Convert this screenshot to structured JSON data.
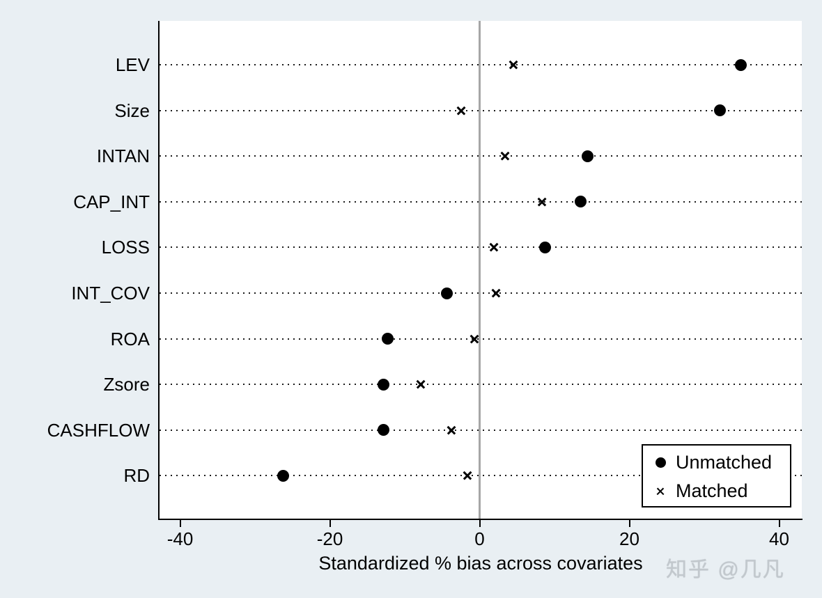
{
  "chart_data": {
    "type": "scatter",
    "title": "",
    "xlabel": "Standardized % bias across covariates",
    "ylabel": "",
    "categories": [
      "LEV",
      "Size",
      "INTAN",
      "CAP_INT",
      "LOSS",
      "INT_COV",
      "ROA",
      "Zsore",
      "CASHFLOW",
      "RD"
    ],
    "series": [
      {
        "name": "Unmatched",
        "marker": "circle",
        "values": [
          34.9,
          32.1,
          14.4,
          13.5,
          8.7,
          -4.4,
          -12.3,
          -12.8,
          -12.8,
          -26.2
        ]
      },
      {
        "name": "Matched",
        "marker": "x",
        "values": [
          4.5,
          -2.5,
          3.4,
          8.3,
          1.9,
          2.2,
          -0.7,
          -7.9,
          -3.8,
          -1.6
        ]
      }
    ],
    "xticks": [
      -40,
      -20,
      0,
      20,
      40
    ],
    "xlim": [
      -42.7,
      43
    ],
    "grid": "horizontal dotted lines, one per category",
    "reference_line_x": 0,
    "legend_position": "bottom-right inside plot"
  },
  "watermark": {
    "text": "知乎 @几凡"
  },
  "colors": {
    "background": "#e9eff3",
    "plot_background": "#ffffff",
    "axis": "#000000",
    "marker": "#000000",
    "gridline_dots": "#1a1a1a",
    "zero_line": "#a6a6a6",
    "legend_border": "#000000",
    "watermark": "#c2c8cd"
  }
}
